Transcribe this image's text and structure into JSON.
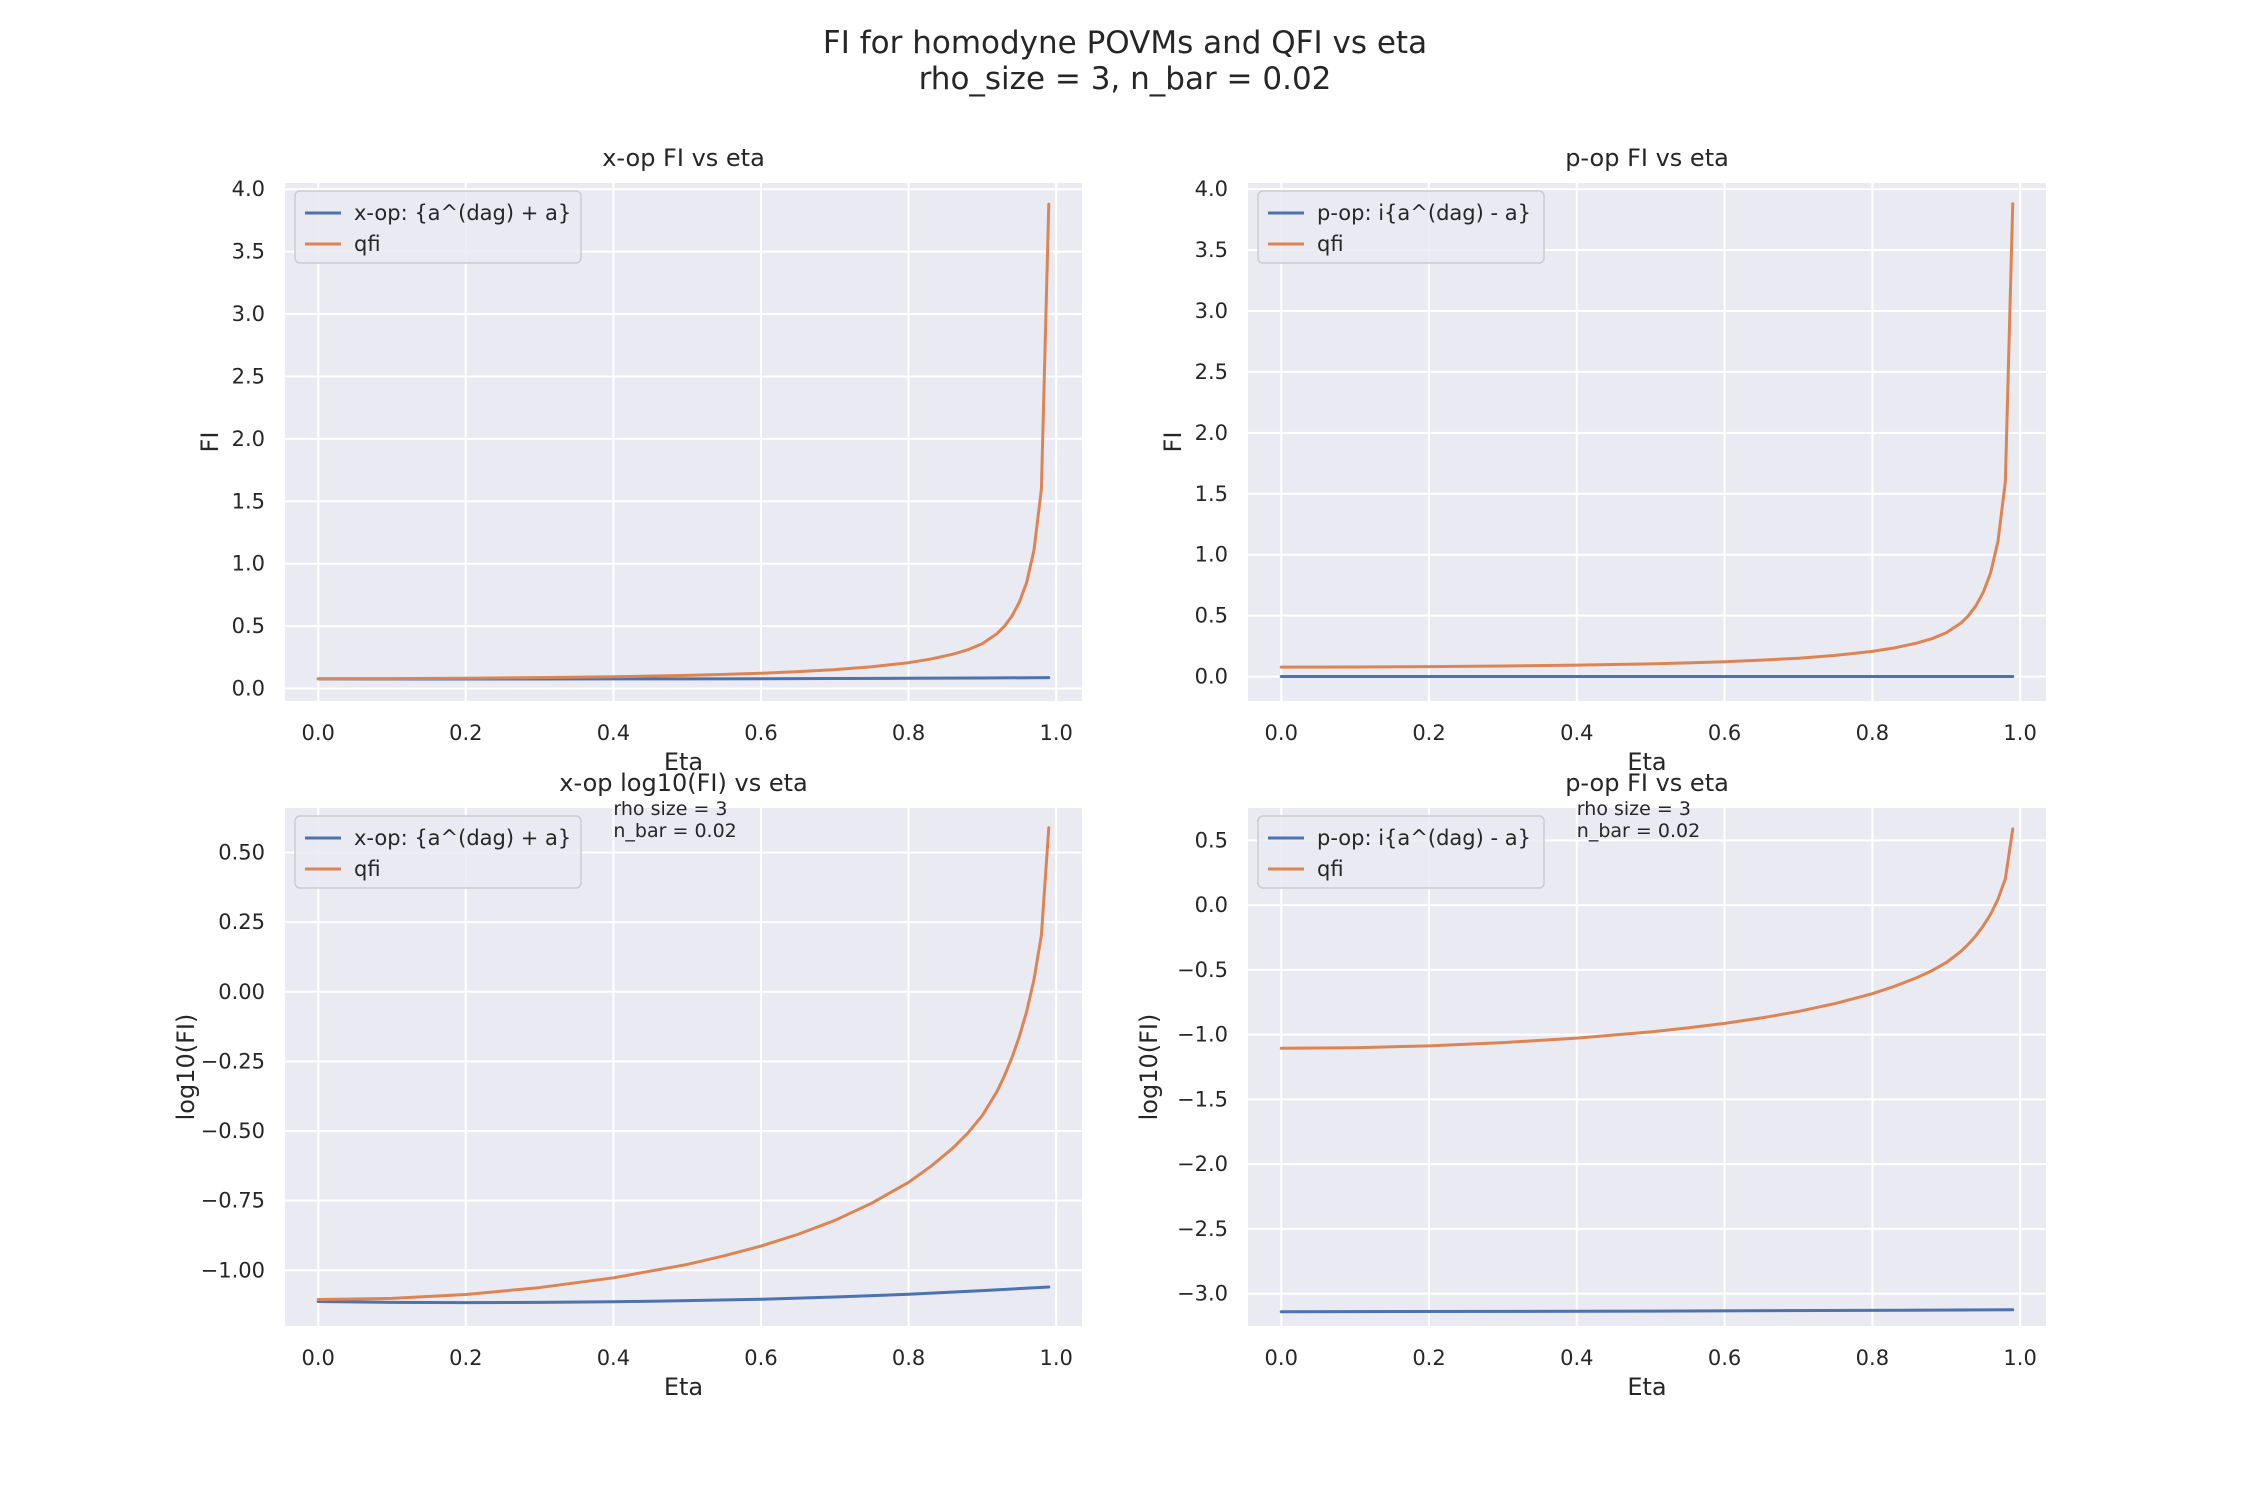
{
  "figure": {
    "title_line1": "FI for homodyne POVMs and QFI vs eta",
    "title_line2": "rho_size = 3, n_bar = 0.02"
  },
  "colors": {
    "background": "#eaeaf2",
    "grid": "#ffffff",
    "series_blue": "#4c72b0",
    "series_orange": "#dd8452"
  },
  "chart_data": [
    {
      "type": "line",
      "title": "x-op FI vs eta",
      "xlabel": "Eta",
      "ylabel": "FI",
      "xlim": [
        -0.045,
        1.035
      ],
      "ylim": [
        -0.1,
        4.05
      ],
      "xticks": [
        0.0,
        0.2,
        0.4,
        0.6,
        0.8,
        1.0
      ],
      "xtick_labels": [
        "0.0",
        "0.2",
        "0.4",
        "0.6",
        "0.8",
        "1.0"
      ],
      "yticks": [
        0.0,
        0.5,
        1.0,
        1.5,
        2.0,
        2.5,
        3.0,
        3.5,
        4.0
      ],
      "ytick_labels": [
        "0.0",
        "0.5",
        "1.0",
        "1.5",
        "2.0",
        "2.5",
        "3.0",
        "3.5",
        "4.0"
      ],
      "grid": true,
      "legend_position": "upper-left",
      "annotation": [],
      "series": [
        {
          "name": "x-op: {a^(dag) + a}",
          "color": "#4c72b0",
          "x": [
            0.0,
            0.1,
            0.2,
            0.3,
            0.4,
            0.5,
            0.6,
            0.7,
            0.8,
            0.9,
            0.99
          ],
          "y": [
            0.077,
            0.0765,
            0.0765,
            0.0765,
            0.077,
            0.0775,
            0.0785,
            0.08,
            0.082,
            0.0845,
            0.087
          ]
        },
        {
          "name": "qfi",
          "color": "#dd8452",
          "x": [
            0.0,
            0.1,
            0.2,
            0.3,
            0.4,
            0.5,
            0.55,
            0.6,
            0.65,
            0.7,
            0.75,
            0.8,
            0.83,
            0.86,
            0.88,
            0.9,
            0.92,
            0.93,
            0.94,
            0.95,
            0.96,
            0.97,
            0.98,
            0.99
          ],
          "y": [
            0.078,
            0.079,
            0.082,
            0.087,
            0.094,
            0.105,
            0.113,
            0.122,
            0.135,
            0.151,
            0.174,
            0.207,
            0.236,
            0.275,
            0.31,
            0.36,
            0.44,
            0.5,
            0.58,
            0.69,
            0.85,
            1.11,
            1.6,
            3.88
          ]
        }
      ]
    },
    {
      "type": "line",
      "title": "p-op FI vs eta",
      "xlabel": "Eta",
      "ylabel": "FI",
      "xlim": [
        -0.045,
        1.035
      ],
      "ylim": [
        -0.2,
        4.05
      ],
      "xticks": [
        0.0,
        0.2,
        0.4,
        0.6,
        0.8,
        1.0
      ],
      "xtick_labels": [
        "0.0",
        "0.2",
        "0.4",
        "0.6",
        "0.8",
        "1.0"
      ],
      "yticks": [
        0.0,
        0.5,
        1.0,
        1.5,
        2.0,
        2.5,
        3.0,
        3.5,
        4.0
      ],
      "ytick_labels": [
        "0.0",
        "0.5",
        "1.0",
        "1.5",
        "2.0",
        "2.5",
        "3.0",
        "3.5",
        "4.0"
      ],
      "grid": true,
      "legend_position": "upper-left",
      "annotation": [],
      "series": [
        {
          "name": "p-op: i{a^(dag) - a}",
          "color": "#4c72b0",
          "x": [
            0.0,
            0.5,
            0.99
          ],
          "y": [
            0.0007,
            0.0007,
            0.00075
          ]
        },
        {
          "name": "qfi",
          "color": "#dd8452",
          "x": [
            0.0,
            0.1,
            0.2,
            0.3,
            0.4,
            0.5,
            0.55,
            0.6,
            0.65,
            0.7,
            0.75,
            0.8,
            0.83,
            0.86,
            0.88,
            0.9,
            0.92,
            0.93,
            0.94,
            0.95,
            0.96,
            0.97,
            0.98,
            0.99
          ],
          "y": [
            0.078,
            0.079,
            0.082,
            0.087,
            0.094,
            0.105,
            0.113,
            0.122,
            0.135,
            0.151,
            0.174,
            0.207,
            0.236,
            0.275,
            0.31,
            0.36,
            0.44,
            0.5,
            0.58,
            0.69,
            0.85,
            1.11,
            1.6,
            3.88
          ]
        }
      ]
    },
    {
      "type": "line",
      "title": "x-op log10(FI) vs eta",
      "xlabel": "Eta",
      "ylabel": "log10(FI)",
      "xlim": [
        -0.045,
        1.035
      ],
      "ylim": [
        -1.2,
        0.66
      ],
      "xticks": [
        0.0,
        0.2,
        0.4,
        0.6,
        0.8,
        1.0
      ],
      "xtick_labels": [
        "0.0",
        "0.2",
        "0.4",
        "0.6",
        "0.8",
        "1.0"
      ],
      "yticks": [
        -1.0,
        -0.75,
        -0.5,
        -0.25,
        0.0,
        0.25,
        0.5
      ],
      "ytick_labels": [
        "−1.00",
        "−0.75",
        "−0.50",
        "−0.25",
        "0.00",
        "0.25",
        "0.50"
      ],
      "grid": true,
      "legend_position": "upper-left",
      "annotation": [
        "rho size = 3",
        "n_bar = 0.02"
      ],
      "series": [
        {
          "name": "x-op: {a^(dag) + a}",
          "color": "#4c72b0",
          "x": [
            0.0,
            0.1,
            0.2,
            0.3,
            0.4,
            0.5,
            0.6,
            0.7,
            0.8,
            0.9,
            0.99
          ],
          "y": [
            -1.112,
            -1.115,
            -1.116,
            -1.115,
            -1.113,
            -1.109,
            -1.104,
            -1.096,
            -1.086,
            -1.073,
            -1.06
          ]
        },
        {
          "name": "qfi",
          "color": "#dd8452",
          "x": [
            0.0,
            0.1,
            0.2,
            0.3,
            0.4,
            0.5,
            0.55,
            0.6,
            0.65,
            0.7,
            0.75,
            0.8,
            0.83,
            0.86,
            0.88,
            0.9,
            0.92,
            0.93,
            0.94,
            0.95,
            0.96,
            0.97,
            0.98,
            0.99
          ],
          "y": [
            -1.105,
            -1.101,
            -1.087,
            -1.062,
            -1.027,
            -0.979,
            -0.948,
            -0.913,
            -0.871,
            -0.821,
            -0.759,
            -0.684,
            -0.627,
            -0.561,
            -0.508,
            -0.444,
            -0.357,
            -0.301,
            -0.237,
            -0.161,
            -0.071,
            0.045,
            0.204,
            0.589
          ]
        }
      ]
    },
    {
      "type": "line",
      "title": "p-op FI vs eta",
      "xlabel": "Eta",
      "ylabel": "log10(FI)",
      "xlim": [
        -0.045,
        1.035
      ],
      "ylim": [
        -3.25,
        0.75
      ],
      "xticks": [
        0.0,
        0.2,
        0.4,
        0.6,
        0.8,
        1.0
      ],
      "xtick_labels": [
        "0.0",
        "0.2",
        "0.4",
        "0.6",
        "0.8",
        "1.0"
      ],
      "yticks": [
        -3.0,
        -2.5,
        -2.0,
        -1.5,
        -1.0,
        -0.5,
        0.0,
        0.5
      ],
      "ytick_labels": [
        "−3.0",
        "−2.5",
        "−2.0",
        "−1.5",
        "−1.0",
        "−0.5",
        "0.0",
        "0.5"
      ],
      "grid": true,
      "legend_position": "upper-left",
      "annotation": [
        "rho size = 3",
        "n_bar = 0.02"
      ],
      "series": [
        {
          "name": "p-op: i{a^(dag) - a}",
          "color": "#4c72b0",
          "x": [
            0.0,
            0.5,
            0.99
          ],
          "y": [
            -3.14,
            -3.135,
            -3.125
          ]
        },
        {
          "name": "qfi",
          "color": "#dd8452",
          "x": [
            0.0,
            0.1,
            0.2,
            0.3,
            0.4,
            0.5,
            0.55,
            0.6,
            0.65,
            0.7,
            0.75,
            0.8,
            0.83,
            0.86,
            0.88,
            0.9,
            0.92,
            0.93,
            0.94,
            0.95,
            0.96,
            0.97,
            0.98,
            0.99
          ],
          "y": [
            -1.105,
            -1.101,
            -1.087,
            -1.062,
            -1.027,
            -0.979,
            -0.948,
            -0.913,
            -0.871,
            -0.821,
            -0.759,
            -0.684,
            -0.627,
            -0.561,
            -0.508,
            -0.444,
            -0.357,
            -0.301,
            -0.237,
            -0.161,
            -0.071,
            0.045,
            0.204,
            0.589
          ]
        }
      ]
    }
  ]
}
